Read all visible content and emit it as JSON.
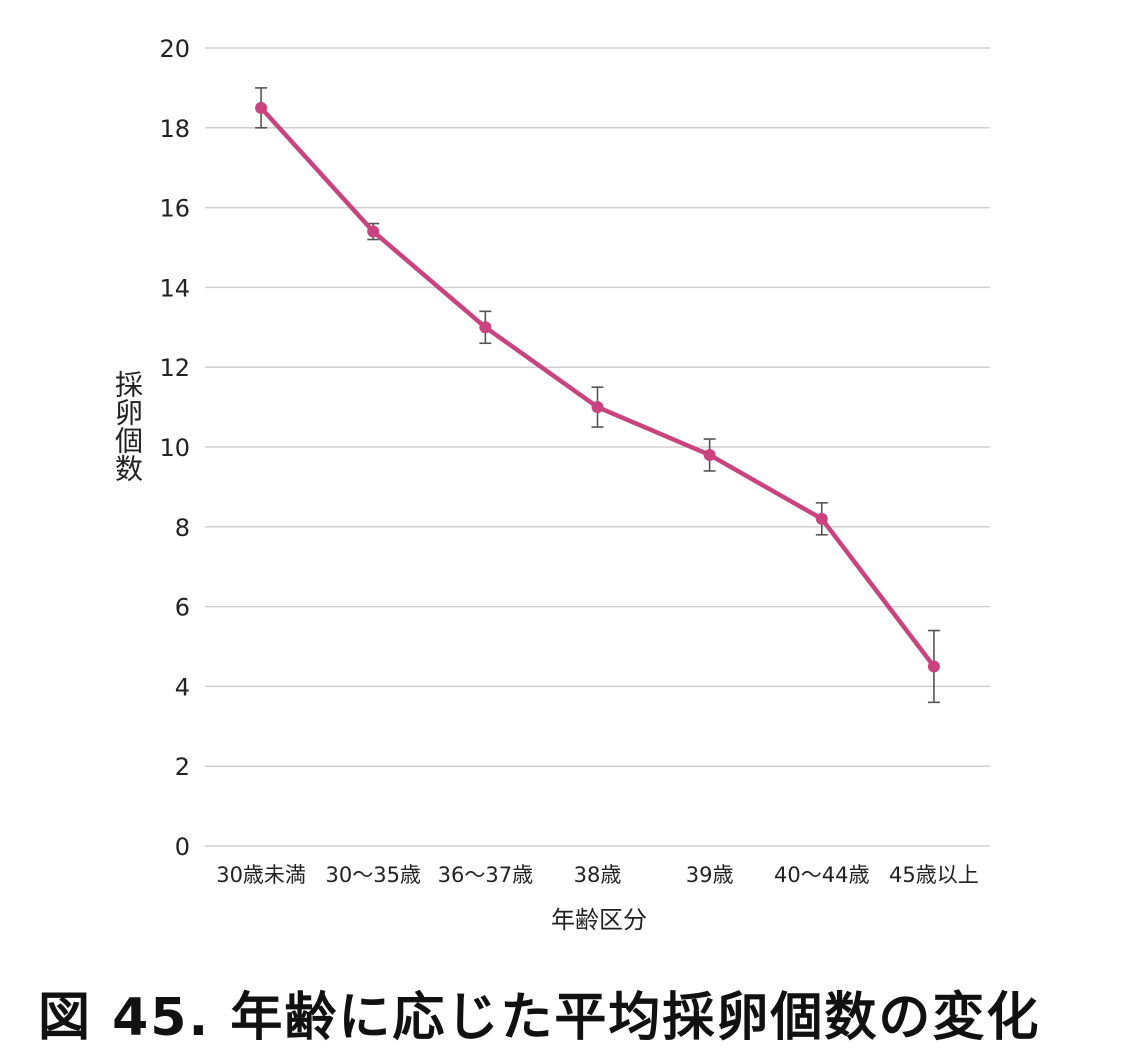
{
  "caption": "図 45.  年齢に応じた平均採卵個数の変化",
  "chart_data": {
    "type": "line",
    "title": "",
    "xlabel": "年齢区分",
    "ylabel": "採卵個数",
    "ylim": [
      0,
      20
    ],
    "yticks": [
      0,
      2,
      4,
      6,
      8,
      10,
      12,
      14,
      16,
      18,
      20
    ],
    "grid": true,
    "categories": [
      "30歳未満",
      "30～35歳",
      "36～37歳",
      "38歳",
      "39歳",
      "40～44歳",
      "45歳以上"
    ],
    "series": [
      {
        "values": [
          18.5,
          15.4,
          13.0,
          11.0,
          9.8,
          8.2,
          4.5
        ],
        "error_low": [
          18.0,
          15.2,
          12.6,
          10.5,
          9.4,
          7.8,
          3.6
        ],
        "error_high": [
          19.0,
          15.6,
          13.4,
          11.5,
          10.2,
          8.6,
          5.4
        ],
        "color": "#c9437f"
      }
    ],
    "error_bar_color": "#555555"
  }
}
